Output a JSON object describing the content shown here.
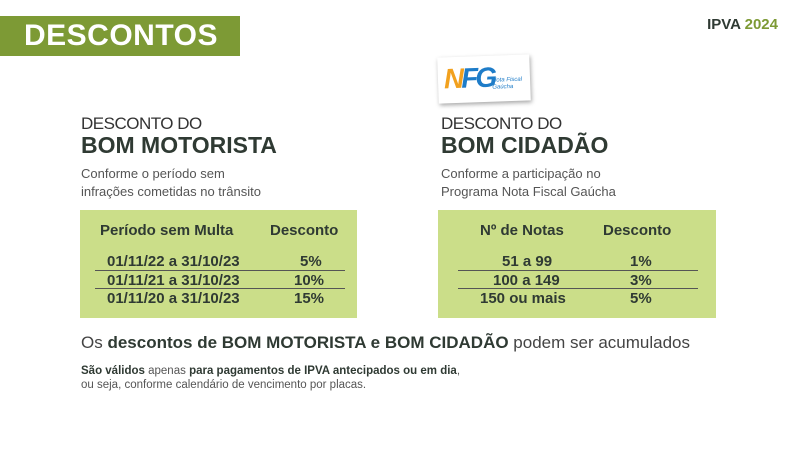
{
  "header": {
    "title": "DESCONTOS",
    "ipva_label": "IPVA",
    "ipva_year": "2024",
    "accent": "#7d9a35"
  },
  "logo": {
    "letters_n": "N",
    "letters_f": "F",
    "letters_g": "G",
    "text_line1": "Nota Fiscal",
    "text_line2": "Gaúcha"
  },
  "motorista": {
    "pre": "DESCONTO DO",
    "title": "BOM MOTORISTA",
    "sub1": "Conforme o período sem",
    "sub2": "infrações cometidas no trânsito",
    "headers": [
      "Período sem Multa",
      "Desconto"
    ],
    "rows": [
      [
        "01/11/22 a 31/10/23",
        "5%"
      ],
      [
        "01/11/21 a 31/10/23",
        "10%"
      ],
      [
        "01/11/20 a 31/10/23",
        "15%"
      ]
    ]
  },
  "cidadao": {
    "pre": "DESCONTO DO",
    "title": "BOM CIDADÃO",
    "sub1": "Conforme a participação no",
    "sub2": "Programa Nota Fiscal Gaúcha",
    "headers": [
      "Nº de Notas",
      "Desconto"
    ],
    "rows": [
      [
        "51 a 99",
        "1%"
      ],
      [
        "100 a 149",
        "3%"
      ],
      [
        "150 ou mais",
        "5%"
      ]
    ]
  },
  "note": {
    "a": "Os",
    "b": "descontos de BOM MOTORISTA e BOM CIDADÃO",
    "c": "podem ser acumulados"
  },
  "validity": {
    "a": "São válidos",
    "b": "apenas",
    "c": "para pagamentos de IPVA antecipados ou em dia",
    "d": ",",
    "line2": "ou seja, conforme calendário de vencimento por placas."
  }
}
